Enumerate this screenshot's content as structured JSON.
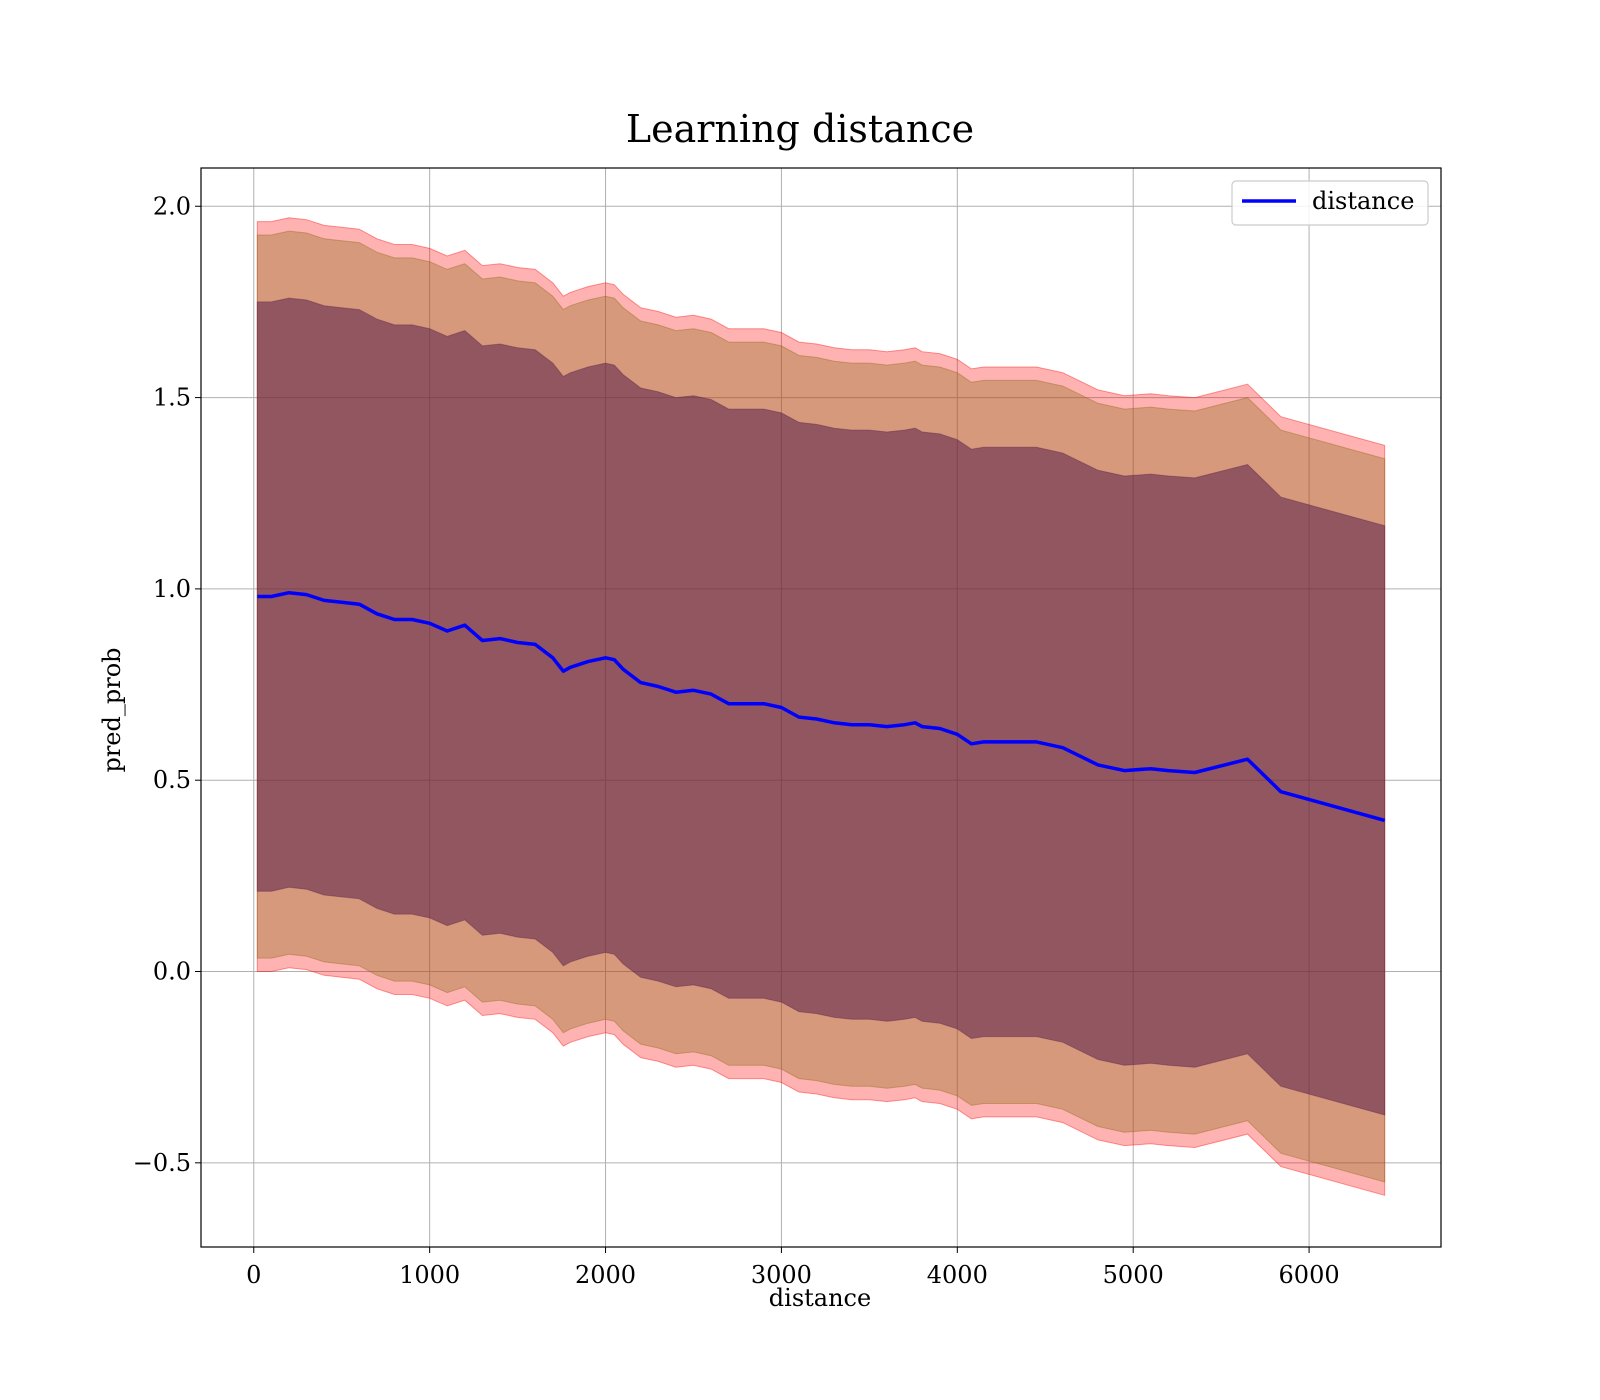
{
  "chart_data": {
    "type": "line",
    "title": "Learning distance",
    "xlabel": "distance",
    "ylabel": "pred_prob",
    "xlim": [
      -300,
      6750
    ],
    "ylim": [
      -0.72,
      2.1
    ],
    "xticks": [
      0,
      1000,
      2000,
      3000,
      4000,
      5000,
      6000
    ],
    "xtick_labels": [
      "0",
      "1000",
      "2000",
      "3000",
      "4000",
      "5000",
      "6000"
    ],
    "yticks": [
      -0.5,
      0.0,
      0.5,
      1.0,
      1.5,
      2.0
    ],
    "ytick_labels": [
      "−0.5",
      "0.0",
      "0.5",
      "1.0",
      "1.5",
      "2.0"
    ],
    "grid": true,
    "legend": {
      "position": "top-right",
      "entries": [
        "distance"
      ]
    },
    "colors": {
      "line": "#0000ff",
      "band_outer": "#ff0000",
      "band_middle": "#8b6914",
      "band_inner": "#5a1f4a"
    },
    "x": [
      20,
      100,
      200,
      300,
      400,
      500,
      600,
      700,
      800,
      900,
      1000,
      1100,
      1200,
      1300,
      1400,
      1500,
      1600,
      1700,
      1760,
      1800,
      1900,
      2000,
      2050,
      2100,
      2200,
      2300,
      2400,
      2500,
      2600,
      2700,
      2800,
      2900,
      3000,
      3100,
      3200,
      3300,
      3400,
      3500,
      3600,
      3700,
      3760,
      3800,
      3900,
      4000,
      4080,
      4150,
      4300,
      4450,
      4600,
      4800,
      4950,
      5100,
      5200,
      5350,
      5650,
      5840,
      6430
    ],
    "series": [
      {
        "name": "distance",
        "values": [
          0.98,
          0.98,
          0.99,
          0.985,
          0.97,
          0.965,
          0.96,
          0.935,
          0.92,
          0.92,
          0.91,
          0.89,
          0.905,
          0.865,
          0.87,
          0.86,
          0.855,
          0.82,
          0.785,
          0.795,
          0.81,
          0.82,
          0.815,
          0.79,
          0.755,
          0.745,
          0.73,
          0.735,
          0.725,
          0.7,
          0.7,
          0.7,
          0.69,
          0.665,
          0.66,
          0.65,
          0.645,
          0.645,
          0.64,
          0.645,
          0.65,
          0.64,
          0.635,
          0.62,
          0.595,
          0.6,
          0.6,
          0.6,
          0.585,
          0.54,
          0.525,
          0.53,
          0.525,
          0.52,
          0.555,
          0.47,
          0.395
        ]
      }
    ],
    "bands": [
      {
        "name": "outer",
        "half_width": 0.98
      },
      {
        "name": "middle",
        "half_width": 0.945
      },
      {
        "name": "inner",
        "half_width": 0.77
      }
    ]
  }
}
